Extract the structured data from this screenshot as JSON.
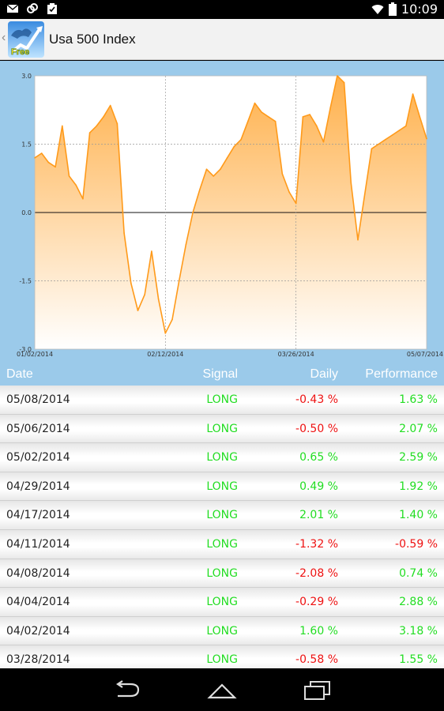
{
  "status_bar": {
    "time": "10:09",
    "left_icons": [
      "mail-icon",
      "link-icon",
      "clipboard-check-icon"
    ],
    "right_icons": [
      "wifi-icon",
      "battery-icon"
    ]
  },
  "action_bar": {
    "title": "Usa 500 Index",
    "app_icon_text": "Free"
  },
  "chart_data": {
    "type": "area",
    "ylim": [
      -3.0,
      3.0
    ],
    "y_ticks": [
      "3.0",
      "1.5",
      "0.0",
      "-1.5",
      "-3.0"
    ],
    "x_ticks": [
      "01/02/2014",
      "02/12/2014",
      "03/26/2014",
      "05/07/2014"
    ],
    "grid": true,
    "fill_color": "#ffb04a",
    "line_color": "#ff9a1a",
    "series": [
      {
        "values": [
          1.2,
          1.3,
          1.1,
          1.0,
          1.9,
          0.8,
          0.6,
          0.3,
          1.75,
          1.9,
          2.1,
          2.35,
          1.95,
          -0.45,
          -1.55,
          -2.15,
          -1.8,
          -0.85,
          -1.9,
          -2.65,
          -2.35,
          -1.5,
          -0.7,
          0.0,
          0.5,
          0.95,
          0.8,
          0.95,
          1.2,
          1.45,
          1.6,
          2.0,
          2.4,
          2.2,
          2.1,
          2.0,
          0.85,
          0.45,
          0.2,
          2.1,
          2.15,
          1.9,
          1.55,
          2.3,
          3.0,
          2.85,
          0.65,
          -0.6,
          0.4,
          1.4,
          1.5,
          1.6,
          1.7,
          1.8,
          1.9,
          2.6,
          2.1,
          1.62
        ]
      }
    ]
  },
  "table": {
    "headers": {
      "date": "Date",
      "signal": "Signal",
      "daily": "Daily",
      "performance": "Performance"
    },
    "rows": [
      {
        "date": "05/08/2014",
        "signal": "LONG",
        "daily": "-0.43 %",
        "performance": "1.63 %"
      },
      {
        "date": "05/06/2014",
        "signal": "LONG",
        "daily": "-0.50 %",
        "performance": "2.07 %"
      },
      {
        "date": "05/02/2014",
        "signal": "LONG",
        "daily": "0.65 %",
        "performance": "2.59 %"
      },
      {
        "date": "04/29/2014",
        "signal": "LONG",
        "daily": "0.49 %",
        "performance": "1.92 %"
      },
      {
        "date": "04/17/2014",
        "signal": "LONG",
        "daily": "2.01 %",
        "performance": "1.40 %"
      },
      {
        "date": "04/11/2014",
        "signal": "LONG",
        "daily": "-1.32 %",
        "performance": "-0.59 %"
      },
      {
        "date": "04/08/2014",
        "signal": "LONG",
        "daily": "-2.08 %",
        "performance": "0.74 %"
      },
      {
        "date": "04/04/2014",
        "signal": "LONG",
        "daily": "-0.29 %",
        "performance": "2.88 %"
      },
      {
        "date": "04/02/2014",
        "signal": "LONG",
        "daily": "1.60 %",
        "performance": "3.18 %"
      },
      {
        "date": "03/28/2014",
        "signal": "LONG",
        "daily": "-0.58 %",
        "performance": "1.55 %"
      }
    ]
  },
  "nav_bar": {
    "buttons": [
      "back-nav-icon",
      "home-nav-icon",
      "recents-nav-icon"
    ]
  },
  "colors": {
    "positive": "#22dd22",
    "negative": "#ee1111",
    "header_bg": "#9bcaea"
  }
}
